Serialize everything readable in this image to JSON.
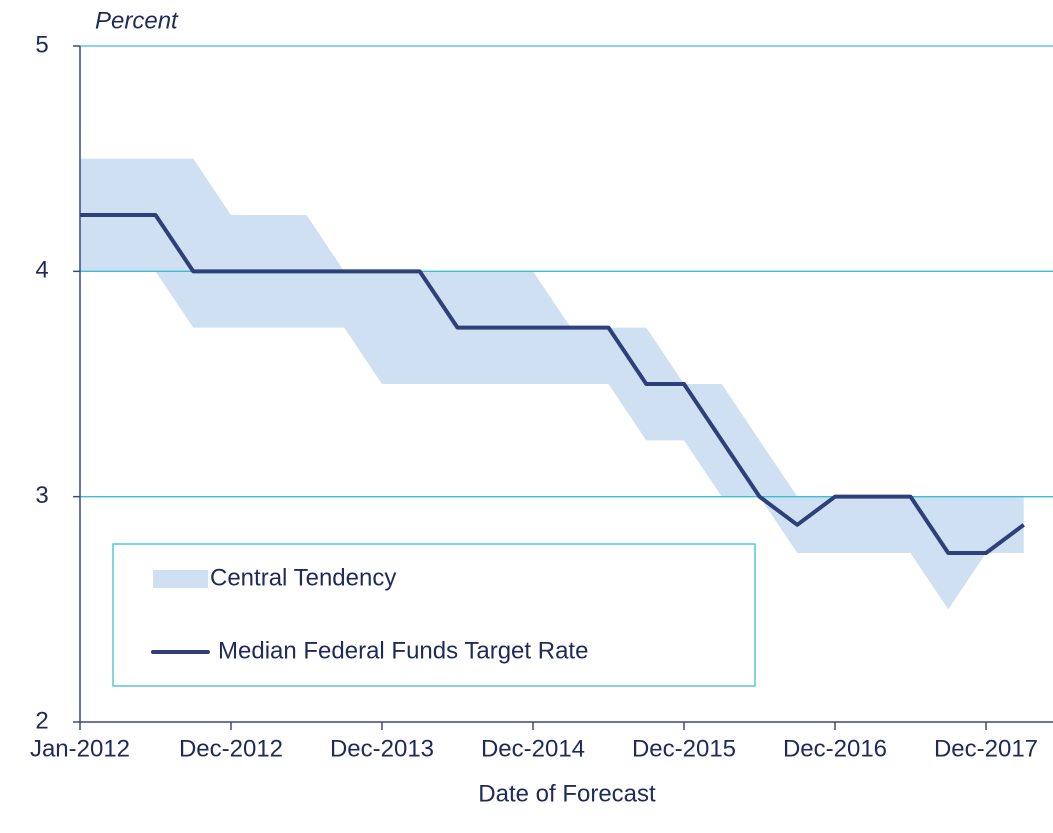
{
  "chart_data": {
    "type": "line",
    "ylabel": "Percent",
    "xlabel": "Date of Forecast",
    "categories": [
      "Jan-2012",
      null,
      null,
      null,
      "Dec-2012",
      null,
      null,
      null,
      "Dec-2013",
      null,
      null,
      null,
      "Dec-2014",
      null,
      null,
      null,
      "Dec-2015",
      null,
      null,
      null,
      "Dec-2016",
      null,
      null,
      null,
      "Dec-2017",
      null
    ],
    "series": [
      {
        "name": "Central Tendency",
        "color": "#cfe0f3",
        "type": "band",
        "upper": [
          4.5,
          4.5,
          4.5,
          4.5,
          4.25,
          4.25,
          4.25,
          4,
          4,
          4,
          4,
          4,
          4,
          3.75,
          3.75,
          3.75,
          3.5,
          3.5,
          3.25,
          3,
          3,
          3,
          3,
          3,
          3,
          3
        ],
        "lower": [
          4,
          4,
          4,
          3.75,
          3.75,
          3.75,
          3.75,
          3.75,
          3.5,
          3.5,
          3.5,
          3.5,
          3.5,
          3.5,
          3.5,
          3.25,
          3.25,
          3,
          3,
          2.75,
          2.75,
          2.75,
          2.75,
          2.5,
          2.75,
          2.75
        ]
      },
      {
        "name": "Median Federal Funds Target Rate",
        "color": "#2e3f7a",
        "values": [
          4.25,
          4.25,
          4.25,
          4,
          4,
          4,
          4,
          4,
          4,
          4,
          3.75,
          3.75,
          3.75,
          3.75,
          3.75,
          3.5,
          3.5,
          3.25,
          3,
          2.875,
          3,
          3,
          3,
          2.75,
          2.75,
          2.875
        ]
      }
    ],
    "ylim": [
      2,
      5
    ],
    "yticks": [
      2,
      3,
      4,
      5
    ],
    "grid": true,
    "grid_color": "#3cc0d0",
    "axis_color": "#3a4a80"
  }
}
